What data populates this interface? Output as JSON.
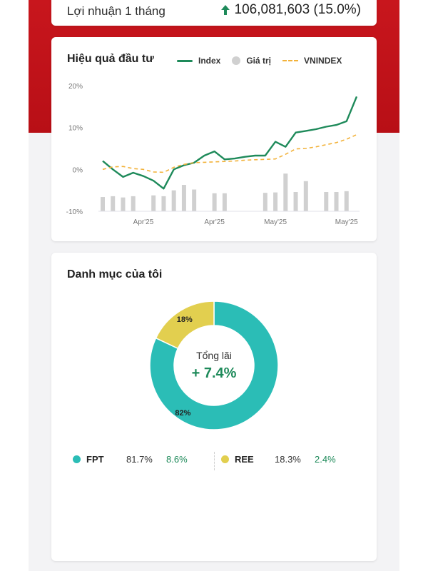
{
  "colors": {
    "brand_red": "#c8161d",
    "index_line": "#1e8a5a",
    "vnindex_line": "#f2b23a",
    "bar_gray": "#d0d0d0",
    "fpt": "#2bbdb6",
    "ree": "#e2cf4f",
    "gain_green": "#1e8a5a"
  },
  "profit": {
    "label": "Lợi nhuận 1 tháng",
    "value": "106,081,603 (15.0%)",
    "arrow_icon": "arrow-up-icon"
  },
  "performance": {
    "title": "Hiệu quả đầu tư",
    "legend": {
      "index": "Index",
      "value": "Giá trị",
      "vnindex": "VNINDEX"
    }
  },
  "chart_data": {
    "type": "line",
    "title": "Hiệu quả đầu tư",
    "xlabel": "",
    "ylabel": "",
    "ylim": [
      -10,
      20
    ],
    "yticks": [
      "20%",
      "10%",
      "0%",
      "-10%"
    ],
    "ytick_values": [
      20,
      10,
      0,
      -10
    ],
    "xtick_labels": [
      "Apr'25",
      "Apr'25",
      "May'25",
      "May'25"
    ],
    "xtick_positions": [
      4,
      11,
      17,
      24
    ],
    "grid": false,
    "legend_position": "top",
    "x": [
      0,
      1,
      2,
      3,
      4,
      5,
      6,
      7,
      8,
      9,
      10,
      11,
      12,
      13,
      14,
      15,
      16,
      17,
      18,
      19,
      20,
      21,
      22,
      23,
      24,
      25
    ],
    "series": [
      {
        "name": "Index",
        "style": "solid",
        "values": [
          2,
          0,
          -1.8,
          -0.8,
          -1.6,
          -2.7,
          -4.6,
          0,
          1,
          1.6,
          3.3,
          4.3,
          2.4,
          2.6,
          3,
          3.3,
          3.3,
          6.6,
          5.4,
          8.8,
          9.2,
          9.6,
          10.2,
          10.6,
          11.5,
          17.4
        ]
      },
      {
        "name": "VNINDEX",
        "style": "dashed",
        "values": [
          0,
          0.6,
          0.7,
          0.2,
          0,
          -0.6,
          -0.7,
          0.5,
          1.2,
          1.6,
          1.7,
          1.8,
          1.9,
          2.0,
          2.2,
          2.3,
          2.4,
          2.5,
          3.6,
          4.9,
          5.0,
          5.4,
          5.9,
          6.4,
          7.2,
          8.3
        ]
      }
    ],
    "bars": {
      "name": "Giá trị",
      "values": [
        3.4,
        3.6,
        3.3,
        3.6,
        0,
        3.8,
        3.6,
        5.0,
        6.3,
        5.2,
        0,
        4.3,
        4.3,
        0,
        0,
        0,
        4.4,
        4.5,
        9.0,
        4.6,
        7.2,
        0,
        4.6,
        4.6,
        4.8,
        0
      ]
    }
  },
  "portfolio": {
    "title": "Danh mục của tôi",
    "center_label": "Tổng lãi",
    "center_value": "+ 7.4%",
    "donut_data": {
      "type": "pie",
      "slices": [
        {
          "name": "FPT",
          "value": 82,
          "label": "82%"
        },
        {
          "name": "REE",
          "value": 18,
          "label": "18%"
        }
      ]
    },
    "items": [
      {
        "name": "FPT",
        "percent": "81.7%",
        "gain": "8.6%"
      },
      {
        "name": "REE",
        "percent": "18.3%",
        "gain": "2.4%"
      }
    ]
  }
}
